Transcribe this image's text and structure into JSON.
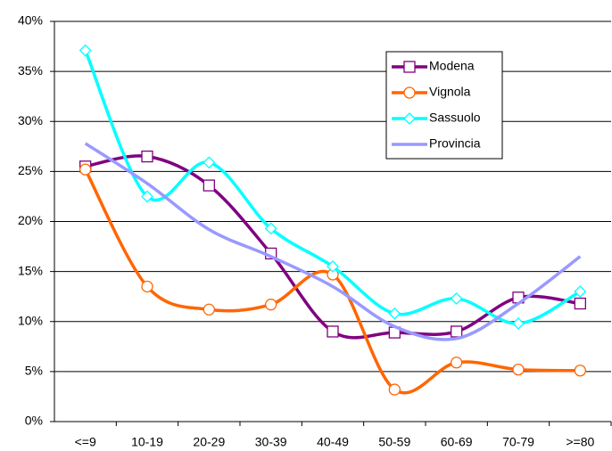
{
  "chart_data": {
    "type": "line",
    "smooth": true,
    "grid": true,
    "legend": "upper-right",
    "categories": [
      "<=9",
      "10-19",
      "20-29",
      "30-39",
      "40-49",
      "50-59",
      "60-69",
      "70-79",
      ">=80"
    ],
    "series": [
      {
        "name": "Modena",
        "color": "#800080",
        "marker": "square",
        "values": [
          25.5,
          26.5,
          23.6,
          16.8,
          9.0,
          8.9,
          9.0,
          12.4,
          11.8
        ]
      },
      {
        "name": "Vignola",
        "color": "#ff6600",
        "marker": "circle",
        "values": [
          25.2,
          13.5,
          11.2,
          11.7,
          14.7,
          3.2,
          5.9,
          5.2,
          5.1
        ]
      },
      {
        "name": "Sassuolo",
        "color": "#00ffff",
        "marker": "diamond",
        "values": [
          37.1,
          22.5,
          25.9,
          19.3,
          15.5,
          10.8,
          12.3,
          9.8,
          13.0
        ]
      },
      {
        "name": "Provincia",
        "color": "#9999ff",
        "marker": "none",
        "values": [
          27.8,
          23.8,
          19.2,
          16.5,
          13.5,
          9.5,
          8.3,
          11.8,
          16.5
        ]
      }
    ],
    "ylim": [
      0,
      40
    ],
    "yticks": [
      {
        "value": 0,
        "label": "0%"
      },
      {
        "value": 5,
        "label": "5%"
      },
      {
        "value": 10,
        "label": "10%"
      },
      {
        "value": 15,
        "label": "15%"
      },
      {
        "value": 20,
        "label": "20%"
      },
      {
        "value": 25,
        "label": "25%"
      },
      {
        "value": 30,
        "label": "30%"
      },
      {
        "value": 35,
        "label": "35%"
      },
      {
        "value": 40,
        "label": "40%"
      }
    ]
  }
}
